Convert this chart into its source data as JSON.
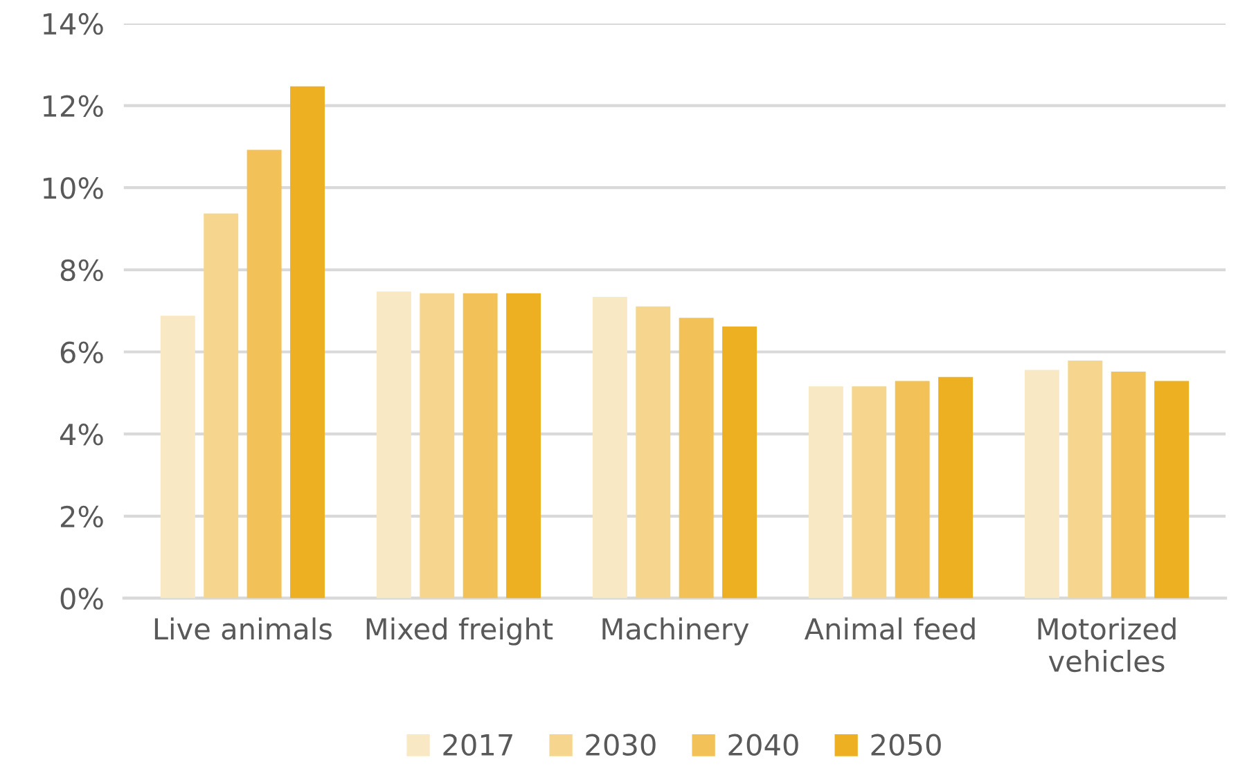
{
  "chart_data": {
    "type": "bar",
    "categories": [
      "Live animals",
      "Mixed freight",
      "Machinery",
      "Animal feed",
      "Motorized\nvehicles"
    ],
    "series": [
      {
        "name": "2017",
        "color": "#f8e9c4",
        "values": [
          6.88,
          7.47,
          7.34,
          5.16,
          5.56
        ]
      },
      {
        "name": "2030",
        "color": "#f6d68e",
        "values": [
          9.37,
          7.43,
          7.11,
          5.16,
          5.79
        ]
      },
      {
        "name": "2040",
        "color": "#f2c158",
        "values": [
          10.92,
          7.43,
          6.83,
          5.29,
          5.52
        ]
      },
      {
        "name": "2050",
        "color": "#edb023",
        "values": [
          12.47,
          7.43,
          6.62,
          5.39,
          5.29
        ]
      }
    ],
    "ylim": [
      0,
      14
    ],
    "yticks": [
      {
        "value": 0,
        "label": "0%"
      },
      {
        "value": 2,
        "label": "2%"
      },
      {
        "value": 4,
        "label": "4%"
      },
      {
        "value": 6,
        "label": "6%"
      },
      {
        "value": 8,
        "label": "8%"
      },
      {
        "value": 10,
        "label": "10%"
      },
      {
        "value": 12,
        "label": "12%"
      },
      {
        "value": 14,
        "label": "14%"
      }
    ],
    "grid": "y",
    "legend": "bottom"
  }
}
